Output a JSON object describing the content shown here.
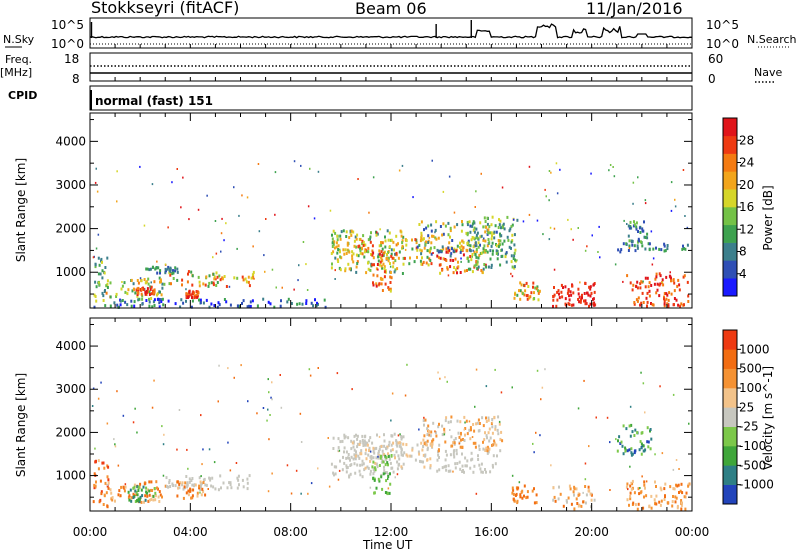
{
  "header": {
    "station": "Stokkseyri (fitACF)",
    "beam": "Beam 06",
    "date": "11/Jan/2016"
  },
  "left_labels": {
    "nsky": "N.Sky",
    "freq": "Freq.",
    "mhz": "[MHz]",
    "cpid": "CPID"
  },
  "right_labels": {
    "nsearch": "N.Search",
    "nave": "Nave"
  },
  "noise_panel": {
    "ytick_top": "10^5",
    "ytick_bottom": "10^0"
  },
  "freq_panel": {
    "left_ticks": [
      "18",
      "8"
    ],
    "right_ticks": [
      "60",
      "0"
    ]
  },
  "cpid_text": "normal (fast) 151",
  "chart_data": [
    {
      "type": "heatmap",
      "name": "power",
      "ylabel": "Slant Range [km]",
      "xlabel": "",
      "xticks": [
        "00:00",
        "04:00",
        "08:00",
        "12:00",
        "16:00",
        "20:00",
        "00:00"
      ],
      "yticks": [
        1000,
        2000,
        3000,
        4000
      ],
      "xlim_hours": [
        0,
        24
      ],
      "ylim_km": [
        180,
        4650
      ],
      "colorbar": {
        "label": "Power [dB]",
        "ticks": [
          "28",
          "24",
          "20",
          "16",
          "12",
          "8",
          "4"
        ],
        "colors": [
          "#1a1aff",
          "#2f4fb5",
          "#3c7f8c",
          "#3ea24f",
          "#74c247",
          "#d6d62a",
          "#f2a51c",
          "#f47b12",
          "#ee3a12",
          "#e0141a"
        ]
      },
      "regions": [
        {
          "t0": 0.1,
          "t1": 0.7,
          "r0": 250,
          "r1": 1400,
          "c": [
            2,
            5
          ]
        },
        {
          "t0": 0.6,
          "t1": 3.0,
          "r0": 400,
          "r1": 900,
          "c": [
            2,
            7
          ]
        },
        {
          "t0": 1.8,
          "t1": 2.6,
          "r0": 520,
          "r1": 700,
          "c": [
            7,
            9
          ]
        },
        {
          "t0": 3.0,
          "t1": 6.6,
          "r0": 700,
          "r1": 1050,
          "c": [
            3,
            8
          ]
        },
        {
          "t0": 3.8,
          "t1": 4.3,
          "r0": 450,
          "r1": 600,
          "c": [
            7,
            9
          ]
        },
        {
          "t0": 2.2,
          "t1": 3.6,
          "r0": 1000,
          "r1": 1150,
          "c": [
            1,
            3
          ]
        },
        {
          "t0": 0.1,
          "t1": 9.5,
          "r0": 230,
          "r1": 420,
          "c": [
            0,
            3
          ]
        },
        {
          "t0": 9.6,
          "t1": 12.5,
          "r0": 1000,
          "r1": 2000,
          "c": [
            2,
            6
          ]
        },
        {
          "t0": 10.4,
          "t1": 13.6,
          "r0": 1200,
          "r1": 1800,
          "c": [
            3,
            8
          ]
        },
        {
          "t0": 11.2,
          "t1": 12.0,
          "r0": 600,
          "r1": 1500,
          "c": [
            5,
            9
          ]
        },
        {
          "t0": 13.8,
          "t1": 15.8,
          "r0": 1000,
          "r1": 1600,
          "c": [
            5,
            9
          ]
        },
        {
          "t0": 13.0,
          "t1": 16.4,
          "r0": 1400,
          "r1": 2200,
          "c": [
            1,
            6
          ]
        },
        {
          "t0": 15.0,
          "t1": 17.0,
          "r0": 1100,
          "r1": 2300,
          "c": [
            2,
            5
          ]
        },
        {
          "t0": 16.8,
          "t1": 17.9,
          "r0": 400,
          "r1": 800,
          "c": [
            3,
            8
          ]
        },
        {
          "t0": 18.4,
          "t1": 19.3,
          "r0": 250,
          "r1": 750,
          "c": [
            8,
            9
          ]
        },
        {
          "t0": 19.4,
          "t1": 20.1,
          "r0": 250,
          "r1": 800,
          "c": [
            8,
            9
          ]
        },
        {
          "t0": 21.3,
          "t1": 23.9,
          "r0": 250,
          "r1": 1000,
          "c": [
            7,
            9
          ]
        },
        {
          "t0": 21.0,
          "t1": 23.8,
          "r0": 1500,
          "r1": 1700,
          "c": [
            1,
            3
          ]
        },
        {
          "t0": 21.4,
          "t1": 22.2,
          "r0": 1700,
          "r1": 2200,
          "c": [
            1,
            4
          ]
        }
      ]
    },
    {
      "type": "heatmap",
      "name": "velocity",
      "ylabel": "Slant Range [km]",
      "xlabel": "Time UT",
      "xticks": [
        "00:00",
        "04:00",
        "08:00",
        "12:00",
        "16:00",
        "20:00",
        "00:00"
      ],
      "yticks": [
        1000,
        2000,
        3000,
        4000
      ],
      "xlim_hours": [
        0,
        24
      ],
      "ylim_km": [
        180,
        4650
      ],
      "colorbar": {
        "label": "Velocity [m s^-1]",
        "ticks": [
          "1000",
          "500",
          "100",
          "25",
          "-25",
          "-100",
          "-500",
          "-1000"
        ],
        "colors": [
          "#2244bb",
          "#2e7f85",
          "#3fa63a",
          "#7cc84a",
          "#c7c7bf",
          "#f3c38a",
          "#f59233",
          "#f26d12",
          "#ee3a12"
        ]
      },
      "regions": [
        {
          "t0": 0.1,
          "t1": 0.7,
          "r0": 300,
          "r1": 1400,
          "c": [
            5,
            8
          ]
        },
        {
          "t0": 0.6,
          "t1": 3.0,
          "r0": 400,
          "r1": 900,
          "c": [
            5,
            7
          ]
        },
        {
          "t0": 1.5,
          "t1": 2.6,
          "r0": 420,
          "r1": 800,
          "c": [
            1,
            3
          ]
        },
        {
          "t0": 3.0,
          "t1": 6.6,
          "r0": 700,
          "r1": 1050,
          "c": [
            4,
            4
          ]
        },
        {
          "t0": 3.4,
          "t1": 4.6,
          "r0": 500,
          "r1": 900,
          "c": [
            5,
            7
          ]
        },
        {
          "t0": 9.6,
          "t1": 12.5,
          "r0": 1000,
          "r1": 2000,
          "c": [
            4,
            4
          ]
        },
        {
          "t0": 10.4,
          "t1": 13.6,
          "r0": 1200,
          "r1": 1800,
          "c": [
            4,
            5
          ]
        },
        {
          "t0": 11.2,
          "t1": 12.0,
          "r0": 600,
          "r1": 1500,
          "c": [
            2,
            3
          ]
        },
        {
          "t0": 13.8,
          "t1": 16.2,
          "r0": 1100,
          "r1": 1600,
          "c": [
            4,
            4
          ]
        },
        {
          "t0": 13.2,
          "t1": 16.4,
          "r0": 1600,
          "r1": 2400,
          "c": [
            4,
            6
          ]
        },
        {
          "t0": 16.8,
          "t1": 17.9,
          "r0": 400,
          "r1": 800,
          "c": [
            6,
            7
          ]
        },
        {
          "t0": 18.4,
          "t1": 20.1,
          "r0": 250,
          "r1": 800,
          "c": [
            4,
            7
          ]
        },
        {
          "t0": 21.3,
          "t1": 23.9,
          "r0": 250,
          "r1": 900,
          "c": [
            5,
            7
          ]
        },
        {
          "t0": 21.0,
          "t1": 22.4,
          "r0": 1500,
          "r1": 2200,
          "c": [
            0,
            3
          ]
        }
      ]
    }
  ]
}
